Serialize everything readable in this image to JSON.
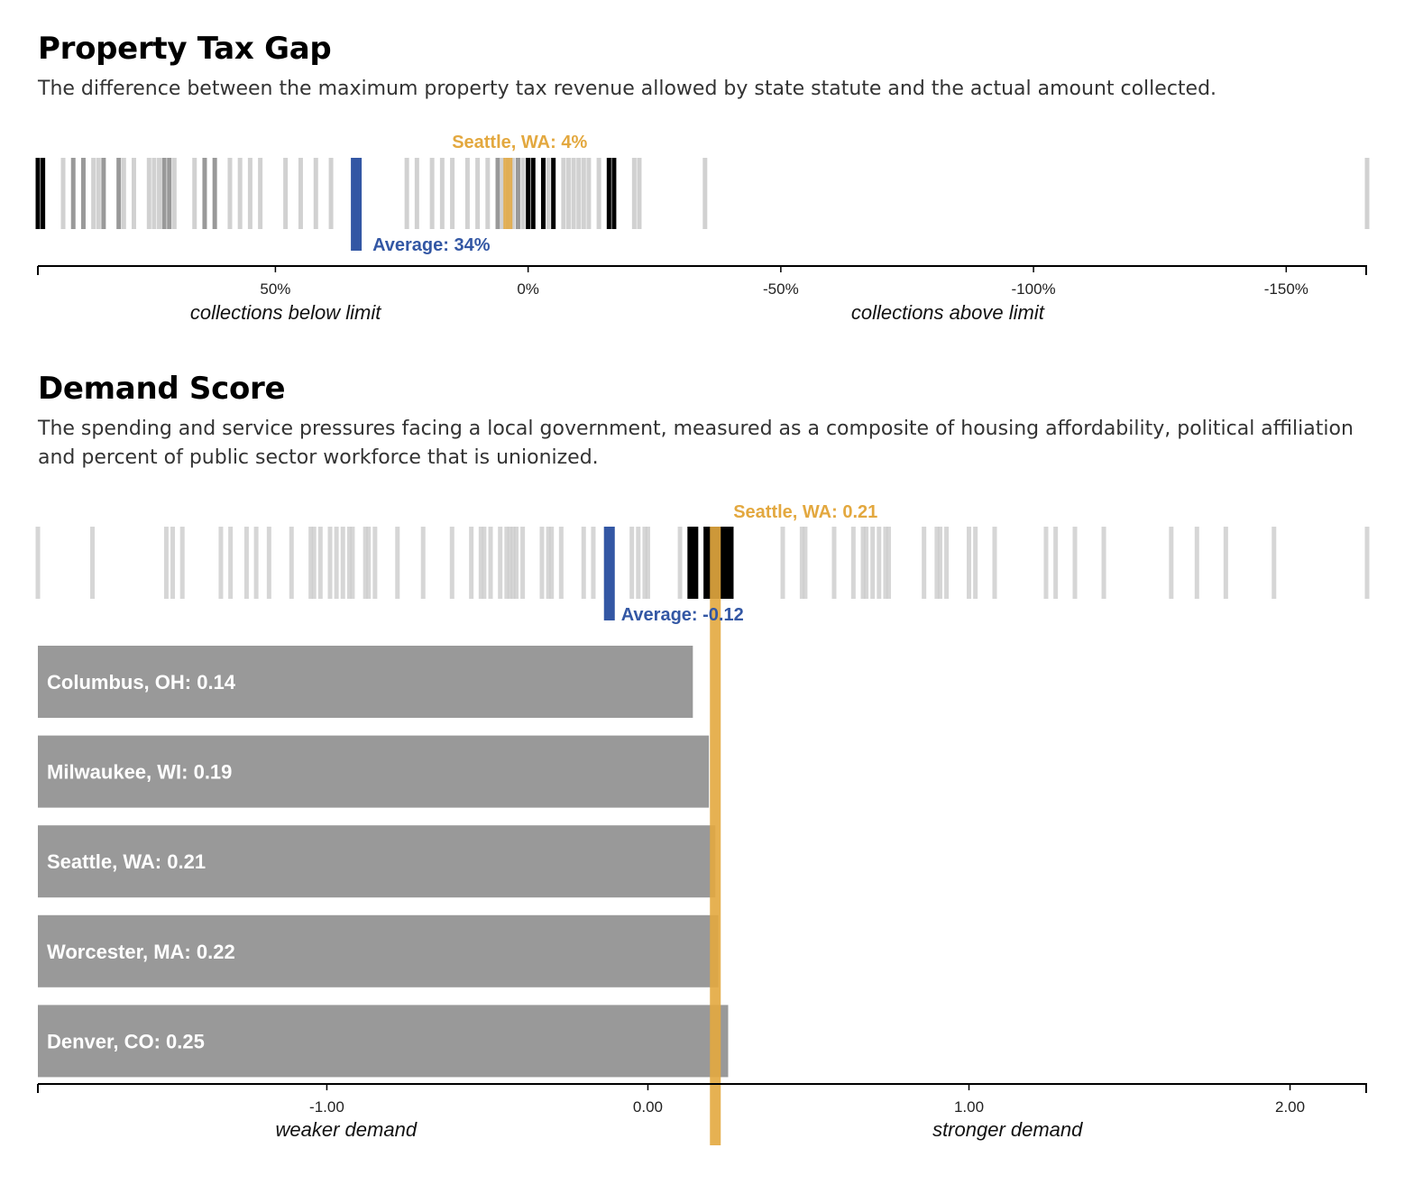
{
  "colors": {
    "accent": "#E3A83F",
    "average": "#3357A4",
    "tick_light": "#cccccc",
    "tick_mid": "#999999",
    "tick_dark": "#000000",
    "bar": "#999999",
    "axis": "#000000"
  },
  "sections": {
    "tax_gap": {
      "title": "Property Tax Gap",
      "description": "The difference between the maximum property tax revenue allowed by state statute and the actual amount collected."
    },
    "demand": {
      "title": "Demand Score",
      "description": "The spending and service pressures facing a local government, measured as a composite of housing affordability, political affiliation and percent of public sector workforce that is unionized."
    }
  },
  "chart_data": [
    {
      "type": "strip",
      "title": "Property Tax Gap",
      "x_domain": [
        97,
        -166
      ],
      "x_reversed": true,
      "ticks": [
        50,
        0,
        -50,
        -100,
        -150
      ],
      "tick_labels": [
        "50%",
        "0%",
        "-50%",
        "-100%",
        "-150%"
      ],
      "axis_annotations": [
        {
          "text": "collections below limit",
          "x": 48
        },
        {
          "text": "collections above limit",
          "x": -83
        }
      ],
      "highlight": {
        "label": "Seattle, WA: 4%",
        "value": 4
      },
      "average": {
        "label": "Average: 34%",
        "value": 34
      },
      "values": [
        97,
        96,
        92,
        90,
        88,
        85,
        84,
        81,
        78,
        74,
        73,
        72,
        71,
        66,
        64,
        62,
        59,
        57,
        55,
        53,
        48,
        45,
        42,
        39,
        22,
        -4,
        -7,
        -8,
        -9,
        -10,
        -11,
        -12,
        -14,
        -21,
        -22,
        -35,
        -166,
        0,
        2,
        3,
        6,
        8,
        10,
        12,
        15,
        17,
        19,
        5,
        -1,
        -3,
        -5,
        1,
        4,
        -16,
        -17,
        80,
        75,
        70,
        24,
        86
      ],
      "dark_values": [
        97,
        96,
        0,
        -1,
        -3,
        -5,
        -15,
        -16,
        -17
      ],
      "mid_values": [
        90,
        88,
        84,
        81,
        72,
        71,
        64,
        62,
        6,
        2
      ]
    },
    {
      "type": "strip+bar",
      "title": "Demand Score",
      "x_domain": [
        -1.9,
        2.24
      ],
      "ticks": [
        -1,
        0,
        1,
        2
      ],
      "tick_labels": [
        "-1.00",
        "0.00",
        "1.00",
        "2.00"
      ],
      "axis_annotations": [
        {
          "text": "weaker demand",
          "x": -0.94
        },
        {
          "text": "stronger demand",
          "x": 1.12
        }
      ],
      "highlight": {
        "label": "Seattle, WA: 0.21",
        "value": 0.21
      },
      "average": {
        "label": "Average: -0.12",
        "value": -0.12
      },
      "values": [
        -1.9,
        -1.73,
        -1.5,
        -1.48,
        -1.45,
        -1.33,
        -1.3,
        -1.25,
        -1.22,
        -1.18,
        -1.11,
        -1.05,
        -1.04,
        -1.02,
        -0.99,
        -0.97,
        -0.95,
        -0.93,
        -0.92,
        -0.88,
        -0.87,
        -0.85,
        -0.78,
        -0.7,
        -0.61,
        -0.55,
        -0.52,
        -0.51,
        -0.49,
        -0.46,
        -0.44,
        -0.43,
        -0.42,
        -0.41,
        -0.39,
        -0.33,
        -0.31,
        -0.3,
        -0.27,
        -0.2,
        -0.17,
        -0.13,
        -0.05,
        -0.03,
        0,
        -0.01,
        0.1,
        0.14,
        0.19,
        0.2,
        0.21,
        0.22,
        0.25,
        0.42,
        0.48,
        0.49,
        0.58,
        0.64,
        0.67,
        0.68,
        0.7,
        0.72,
        0.74,
        0.75,
        0.86,
        0.9,
        0.91,
        0.93,
        1.0,
        1.02,
        1.08,
        1.24,
        1.27,
        1.33,
        1.42,
        1.63,
        1.71,
        1.8,
        1.95,
        2.24
      ],
      "dark_values": [
        0.14,
        0.19,
        0.22,
        0.25
      ],
      "bars": [
        {
          "label": "Columbus, OH: 0.14",
          "value": 0.14
        },
        {
          "label": "Milwaukee, WI: 0.19",
          "value": 0.19
        },
        {
          "label": "Seattle, WA: 0.21",
          "value": 0.21
        },
        {
          "label": "Worcester, MA: 0.22",
          "value": 0.22
        },
        {
          "label": "Denver, CO: 0.25",
          "value": 0.25
        }
      ]
    }
  ]
}
